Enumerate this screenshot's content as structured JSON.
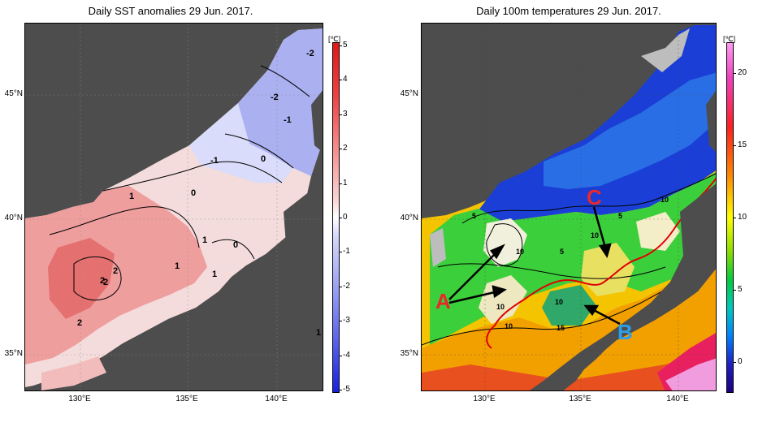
{
  "left_panel": {
    "title": "Daily SST anomalies 29 Jun. 2017.",
    "unit": "[℃]",
    "colorbar_ticks": [
      "5",
      "4",
      "3",
      "2",
      "1",
      "0",
      "-1",
      "-2",
      "-3",
      "-4",
      "-5"
    ],
    "contour_labels": [
      "-2",
      "-2",
      "-1",
      "-1",
      "0",
      "0",
      "1",
      "0",
      "1",
      "1",
      "1",
      "2",
      "2",
      "2",
      "2",
      "1"
    ]
  },
  "right_panel": {
    "title": "Daily 100m temperatures 29 Jun. 2017.",
    "unit": "[℃]",
    "colorbar_ticks": [
      "20",
      "15",
      "10",
      "5",
      "0"
    ],
    "contour_labels": [
      "5",
      "10",
      "10",
      "5",
      "5",
      "10",
      "10",
      "15",
      "10",
      "10"
    ]
  },
  "axes": {
    "lat_labels": [
      "45°N",
      "40°N",
      "35°N"
    ],
    "lon_labels": [
      "130°E",
      "135°E",
      "140°E"
    ]
  },
  "annotations": {
    "a": "A",
    "b": "B",
    "c": "C"
  },
  "colors": {
    "land": "#4d4d4d",
    "anomaly_warm": "#e01818",
    "anomaly_cold": "#1820e0",
    "front_line": "#e00000",
    "annotation_red": "#e8282a",
    "annotation_blue": "#2b9fe8"
  }
}
